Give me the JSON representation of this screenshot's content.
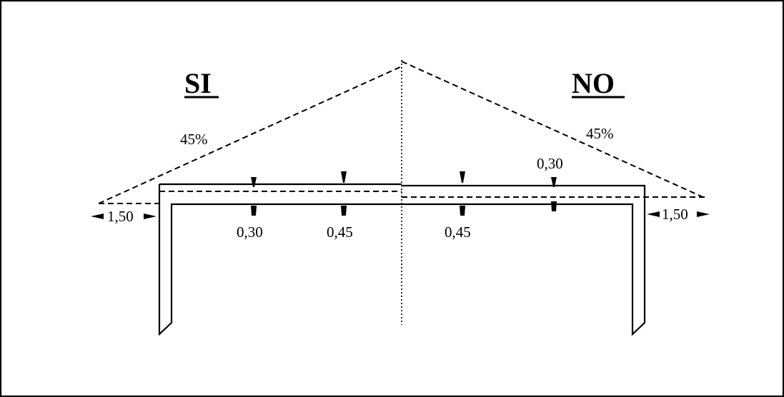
{
  "labels": {
    "left_title": "SI",
    "right_title": "NO",
    "left_slope": "45%",
    "right_slope": "45%",
    "left_overhang": "1,50",
    "right_overhang": "1,50",
    "left_dim_1": "0,30",
    "left_dim_2": "0,45",
    "right_dim_1": "0,45",
    "right_dim_2": "0,30"
  },
  "colors": {
    "line": "#000000",
    "background": "#ffffff"
  }
}
